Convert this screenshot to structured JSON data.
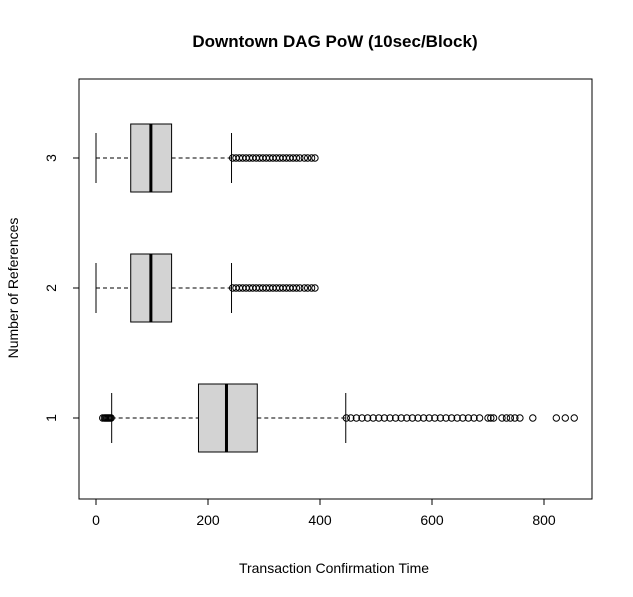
{
  "chart_data": {
    "type": "boxplot",
    "orientation": "horizontal",
    "title": "Downtown DAG PoW (10sec/Block)",
    "xlabel": "Transaction Confirmation Time",
    "ylabel": "Number of References",
    "xlim": [
      0,
      860
    ],
    "xticks": [
      0,
      200,
      400,
      600,
      800
    ],
    "categories": [
      "1",
      "2",
      "3"
    ],
    "series": [
      {
        "category": "1",
        "whisker_low": 28,
        "q1": 183,
        "median": 233,
        "q3": 288,
        "whisker_high": 446,
        "outliers": [
          12,
          15,
          17,
          19,
          21,
          23,
          25,
          27,
          447,
          455,
          465,
          475,
          485,
          495,
          505,
          515,
          525,
          535,
          545,
          555,
          565,
          575,
          585,
          595,
          605,
          615,
          625,
          635,
          645,
          655,
          665,
          675,
          685,
          700,
          705,
          710,
          725,
          733,
          740,
          748,
          757,
          780,
          822,
          838,
          854
        ]
      },
      {
        "category": "2",
        "whisker_low": 0,
        "q1": 62,
        "median": 98,
        "q3": 135,
        "whisker_high": 242,
        "outliers": [
          244,
          250,
          256,
          262,
          268,
          274,
          280,
          286,
          292,
          298,
          304,
          310,
          316,
          322,
          328,
          334,
          340,
          346,
          352,
          358,
          364,
          372,
          378,
          385,
          391
        ]
      },
      {
        "category": "3",
        "whisker_low": 0,
        "q1": 62,
        "median": 98,
        "q3": 135,
        "whisker_high": 242,
        "outliers": [
          244,
          250,
          256,
          262,
          268,
          274,
          280,
          286,
          292,
          298,
          304,
          310,
          316,
          322,
          328,
          334,
          340,
          346,
          352,
          358,
          364,
          372,
          378,
          385,
          391
        ]
      }
    ],
    "box_color": "#d3d3d3",
    "grid": false
  }
}
